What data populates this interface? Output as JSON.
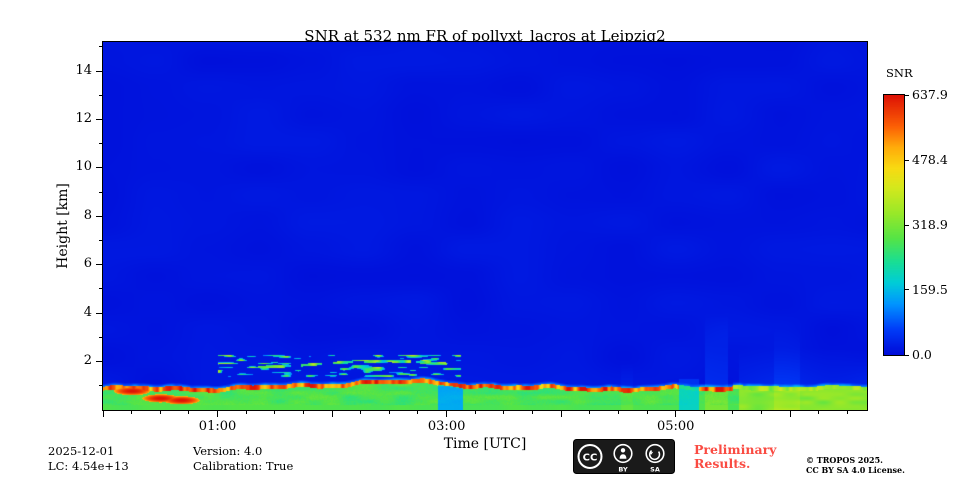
{
  "chart_data": {
    "type": "heatmap",
    "title": "SNR at 532 nm FR of pollyxt_lacros at Leipzig2",
    "xlabel": "Time [UTC]",
    "ylabel": "Height [km]",
    "x_axis": {
      "start_hour": 0,
      "end_hour": 6.67,
      "ticks": [
        {
          "hour": 1,
          "label": "01:00"
        },
        {
          "hour": 3,
          "label": "03:00"
        },
        {
          "hour": 5,
          "label": "05:00"
        }
      ]
    },
    "y_axis": {
      "min_km": 0,
      "max_km": 15.2,
      "ticks": [
        2,
        4,
        6,
        8,
        10,
        12,
        14
      ]
    },
    "colorbar": {
      "label": "SNR",
      "vmin": 0.0,
      "vmax": 637.9,
      "ticks": [
        637.9,
        478.4,
        318.9,
        159.5,
        0.0
      ],
      "colormap_stops": [
        [
          0.0,
          0,
          10,
          215
        ],
        [
          0.1,
          0,
          60,
          248
        ],
        [
          0.2,
          0,
          150,
          255
        ],
        [
          0.28,
          0,
          205,
          215
        ],
        [
          0.36,
          25,
          222,
          148
        ],
        [
          0.45,
          85,
          228,
          70
        ],
        [
          0.55,
          155,
          232,
          40
        ],
        [
          0.65,
          215,
          232,
          28
        ],
        [
          0.72,
          248,
          218,
          18
        ],
        [
          0.8,
          255,
          172,
          10
        ],
        [
          0.88,
          252,
          96,
          5
        ],
        [
          1.0,
          222,
          18,
          5
        ]
      ]
    },
    "features": {
      "background_snr": 8,
      "surface_layer": {
        "interior_snr": 250,
        "top_line_snr": 640,
        "base_top_km": 0.98,
        "bump_center_hour": 2.55,
        "bump_amp_km": 0.28
      },
      "detached_patches": {
        "hours": [
          1.0,
          3.12
        ],
        "height_km": [
          1.38,
          2.3
        ]
      },
      "streaks": [
        {
          "hours": [
            2.92,
            3.14
          ],
          "max_km": 1.6,
          "kind": "cyan-column"
        },
        {
          "hours": [
            5.02,
            5.2
          ],
          "max_km": 1.3,
          "kind": "dim-gap"
        },
        {
          "hours": [
            5.25,
            5.45
          ],
          "max_km": 4.0,
          "kind": "faint-boost"
        },
        {
          "hours": [
            5.55,
            6.67
          ],
          "max_km": 2.6,
          "kind": "right-haze"
        },
        {
          "hours": [
            5.85,
            6.08
          ],
          "max_km": 3.4,
          "kind": "faint-boost"
        }
      ],
      "red_blobs": [
        {
          "hour": 0.5,
          "km": 0.5
        },
        {
          "hour": 0.68,
          "km": 0.42
        },
        {
          "hour": 0.25,
          "km": 0.8
        }
      ]
    }
  },
  "footer": {
    "date": "2025-12-01",
    "lc": "LC: 4.54e+13",
    "version": "Version: 4.0",
    "calibration": "Calibration: True",
    "preliminary_line1": "Preliminary",
    "preliminary_line2": "Results.",
    "copyright": "© TROPOS 2025.",
    "license": "CC BY SA 4.0 License.",
    "cc_badge": {
      "cc": "CC",
      "by": "BY",
      "sa": "SA"
    }
  },
  "colors": {
    "preliminary_red": "#fa4b42",
    "badge_black": "#1a1a1a"
  }
}
